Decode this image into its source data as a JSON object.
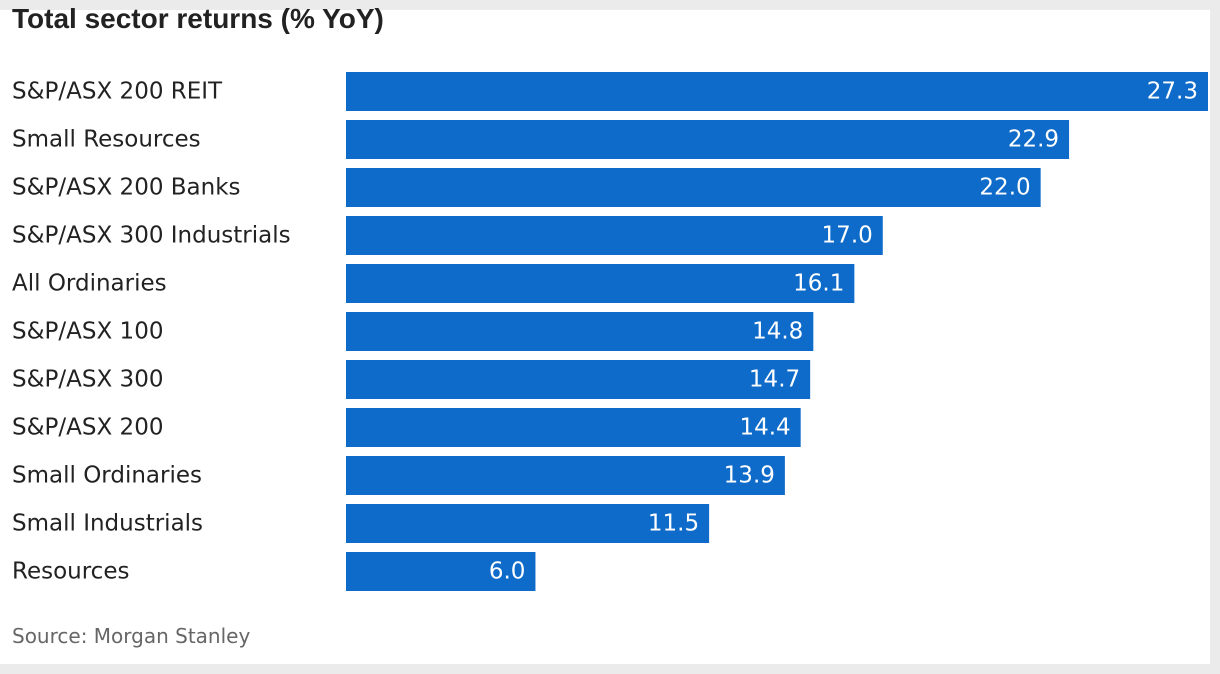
{
  "chart_data": {
    "type": "bar",
    "orientation": "horizontal",
    "title": "Total sector returns (% YoY)",
    "categories": [
      "S&P/ASX 200 REIT",
      "Small Resources",
      "S&P/ASX 200 Banks",
      "S&P/ASX 300 Industrials",
      "All Ordinaries",
      "S&P/ASX 100",
      "S&P/ASX 300",
      "S&P/ASX 200",
      "Small Ordinaries",
      "Small Industrials",
      "Resources"
    ],
    "values": [
      27.3,
      22.9,
      22.0,
      17.0,
      16.1,
      14.8,
      14.7,
      14.4,
      13.9,
      11.5,
      6.0
    ],
    "value_labels": [
      "27.3",
      "22.9",
      "22.0",
      "17.0",
      "16.1",
      "14.8",
      "14.7",
      "14.4",
      "13.9",
      "11.5",
      "6.0"
    ],
    "xlim": [
      0,
      27.3
    ],
    "bar_color": "#0f6bc9",
    "grid": false,
    "legend": "none",
    "source": "Source: Morgan Stanley"
  }
}
